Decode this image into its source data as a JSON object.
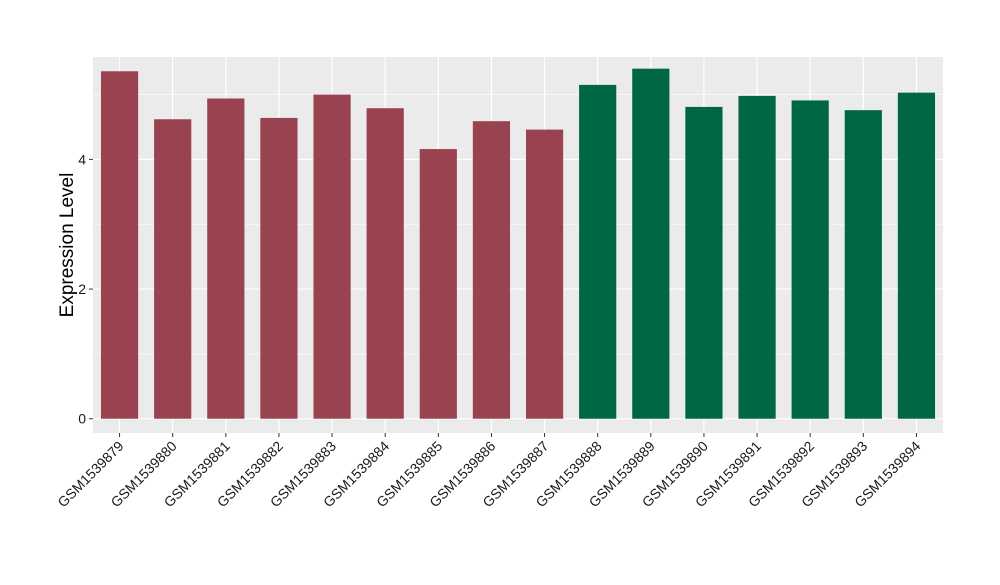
{
  "chart_data": {
    "type": "bar",
    "ylabel": "Expression Level",
    "xlabel": "",
    "title": "",
    "ylim": [
      -0.22,
      5.58
    ],
    "y_ticks": [
      0,
      2,
      4
    ],
    "grid": true,
    "legend": "none",
    "categories": [
      "GSM1539879",
      "GSM1539880",
      "GSM1539881",
      "GSM1539882",
      "GSM1539883",
      "GSM1539884",
      "GSM1539885",
      "GSM1539886",
      "GSM1539887",
      "GSM1539888",
      "GSM1539889",
      "GSM1539890",
      "GSM1539891",
      "GSM1539892",
      "GSM1539893",
      "GSM1539894"
    ],
    "values": [
      5.36,
      4.62,
      4.94,
      4.64,
      5.0,
      4.79,
      4.16,
      4.59,
      4.46,
      5.15,
      5.4,
      4.81,
      4.98,
      4.91,
      4.76,
      5.03
    ],
    "group_index": [
      0,
      0,
      0,
      0,
      0,
      0,
      0,
      0,
      0,
      1,
      1,
      1,
      1,
      1,
      1,
      1
    ],
    "colors": [
      "#9a4350",
      "#006745"
    ],
    "panel_background": "#ebebeb",
    "grid_color": "#ffffff"
  }
}
